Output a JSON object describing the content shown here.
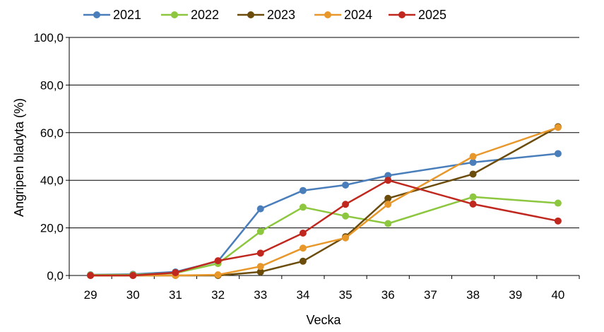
{
  "chart_data": {
    "type": "line",
    "xlabel": "Vecka",
    "ylabel": "Angripen bladyta (%)",
    "x": [
      29,
      30,
      31,
      32,
      33,
      34,
      35,
      36,
      37,
      38,
      39,
      40
    ],
    "y_ticks": [
      "0,0",
      "20,0",
      "40,0",
      "60,0",
      "80,0",
      "100,0"
    ],
    "ylim": [
      0,
      100
    ],
    "grid": "horizontal",
    "legend_position": "top",
    "series": [
      {
        "name": "2021",
        "color": "#4a7ebb",
        "points": [
          [
            29,
            0.3
          ],
          [
            30,
            0.5
          ],
          [
            31,
            1.5
          ],
          [
            32,
            6.0
          ],
          [
            33,
            28.0
          ],
          [
            34,
            35.7
          ],
          [
            35,
            38.0
          ],
          [
            36,
            42.0
          ],
          [
            38,
            47.5
          ],
          [
            40,
            51.2
          ]
        ]
      },
      {
        "name": "2022",
        "color": "#8dc63f",
        "points": [
          [
            29,
            0.2
          ],
          [
            30,
            0.3
          ],
          [
            31,
            1.0
          ],
          [
            32,
            5.0
          ],
          [
            33,
            18.5
          ],
          [
            34,
            28.7
          ],
          [
            35,
            25.0
          ],
          [
            36,
            21.8
          ],
          [
            38,
            33.0
          ],
          [
            40,
            30.4
          ]
        ]
      },
      {
        "name": "2023",
        "color": "#6b4c0b",
        "points": [
          [
            29,
            0.0
          ],
          [
            30,
            0.0
          ],
          [
            31,
            0.0
          ],
          [
            32,
            0.0
          ],
          [
            33,
            1.5
          ],
          [
            34,
            6.0
          ],
          [
            35,
            16.3
          ],
          [
            36,
            32.4
          ],
          [
            38,
            42.6
          ],
          [
            40,
            62.5
          ]
        ]
      },
      {
        "name": "2024",
        "color": "#e8982b",
        "points": [
          [
            29,
            0.0
          ],
          [
            30,
            0.0
          ],
          [
            31,
            0.0
          ],
          [
            32,
            0.3
          ],
          [
            33,
            3.8
          ],
          [
            34,
            11.5
          ],
          [
            35,
            15.8
          ],
          [
            36,
            29.9
          ],
          [
            38,
            50.0
          ],
          [
            40,
            62.2
          ]
        ]
      },
      {
        "name": "2025",
        "color": "#c0281f",
        "points": [
          [
            29,
            0.0
          ],
          [
            30,
            0.0
          ],
          [
            31,
            1.2
          ],
          [
            32,
            6.2
          ],
          [
            33,
            9.4
          ],
          [
            34,
            17.8
          ],
          [
            35,
            29.9
          ],
          [
            36,
            40.0
          ],
          [
            38,
            30.0
          ],
          [
            40,
            22.9
          ]
        ]
      }
    ]
  }
}
